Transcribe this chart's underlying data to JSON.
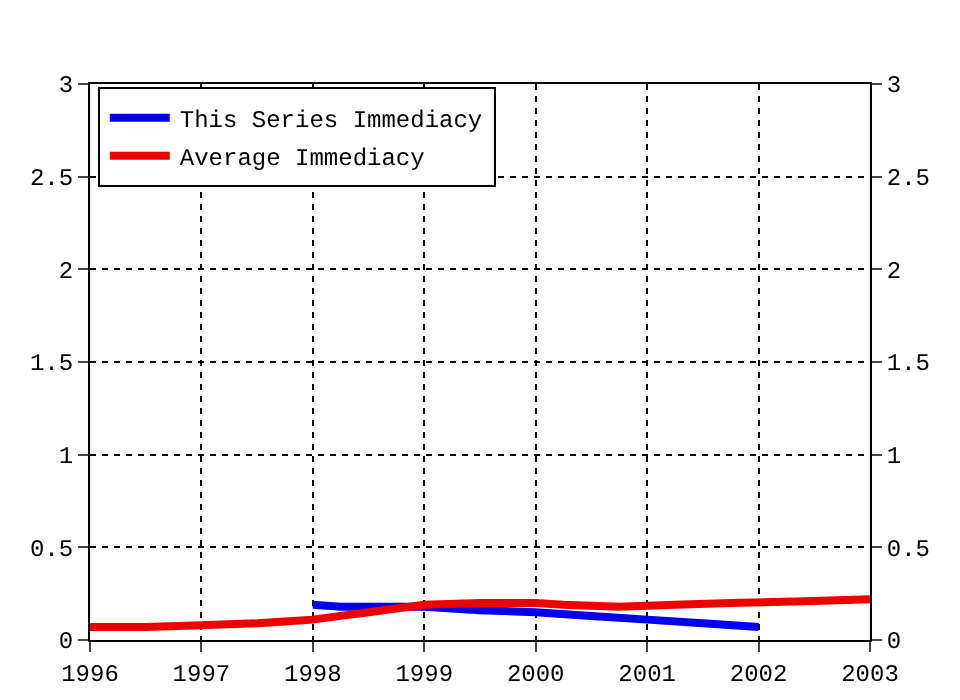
{
  "chart_data": {
    "type": "line",
    "xlim": [
      1996,
      2003
    ],
    "xticks": [
      1996,
      1997,
      1998,
      1999,
      2000,
      2001,
      2002,
      2003
    ],
    "ylim": [
      0,
      3
    ],
    "yticks": [
      0,
      0.5,
      1,
      1.5,
      2,
      2.5,
      3
    ],
    "y2lim": [
      0,
      3
    ],
    "y2ticks": [
      0,
      0.5,
      1,
      1.5,
      2,
      2.5,
      3
    ],
    "grid": true,
    "legend": "top left",
    "marker": "none",
    "line_style": "solid",
    "series": [
      {
        "name": "This Series Immediacy",
        "color": "#0000ee",
        "x": [
          1998,
          1998.25,
          1999,
          1999.5,
          2000,
          2000.5,
          2001,
          2001.5,
          2002
        ],
        "values": [
          0.19,
          0.18,
          0.18,
          0.16,
          0.15,
          0.13,
          0.11,
          0.09,
          0.07
        ]
      },
      {
        "name": "Average Immediacy",
        "color": "#ee0000",
        "x": [
          1996,
          1996.5,
          1997,
          1997.5,
          1997.75,
          1998,
          1998.25,
          1998.5,
          1998.75,
          1999,
          1999.5,
          2000,
          2000.25,
          2000.75,
          2001.25,
          2001.75,
          2002.5,
          2003
        ],
        "values": [
          0.07,
          0.07,
          0.08,
          0.09,
          0.1,
          0.11,
          0.13,
          0.15,
          0.17,
          0.19,
          0.2,
          0.2,
          0.19,
          0.18,
          0.19,
          0.2,
          0.21,
          0.22
        ]
      }
    ]
  }
}
